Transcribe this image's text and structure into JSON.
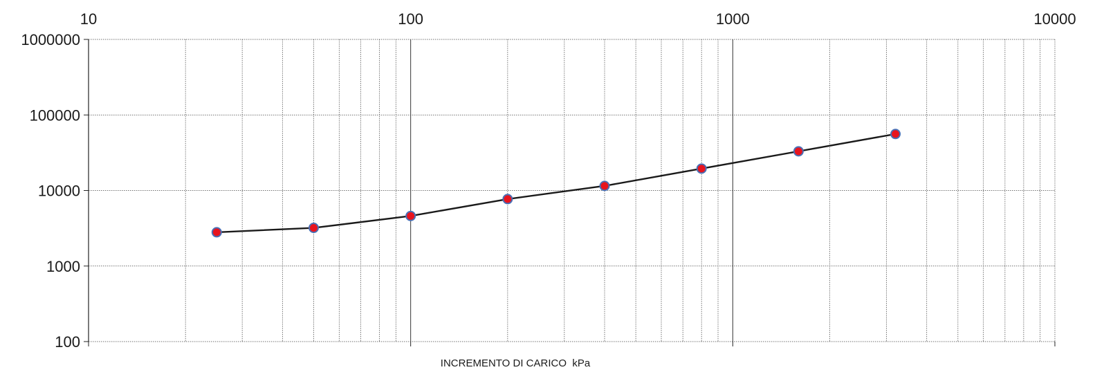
{
  "chart_data": {
    "type": "line",
    "title": "",
    "xlabel": "INCREMENTO DI CARICO  kPa",
    "ylabel": "",
    "x_scale": "log",
    "y_scale": "log",
    "xlim": [
      10,
      10000
    ],
    "ylim": [
      100,
      1000000
    ],
    "x_tick_labels": [
      "10",
      "100",
      "1000",
      "10000"
    ],
    "y_tick_labels": [
      "1000000",
      "100000",
      "10000",
      "1000",
      "100"
    ],
    "x_tick_label_position": "top",
    "grid": true,
    "grid_style": "dotted",
    "series": [
      {
        "x": [
          25,
          50,
          100,
          200,
          400,
          800,
          1600,
          3200
        ],
        "y": [
          2800,
          3200,
          4600,
          7700,
          11500,
          19500,
          33000,
          56000
        ],
        "line_color": "#1a1a1a",
        "marker_fill": "#e8141e",
        "marker_edge": "#4a6fb5"
      }
    ]
  }
}
